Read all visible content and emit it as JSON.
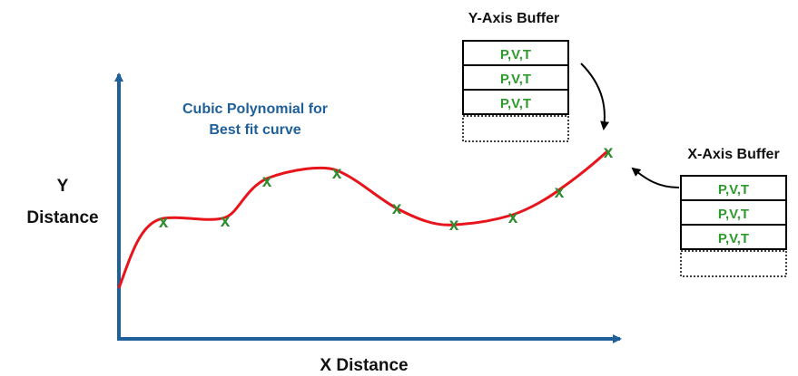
{
  "axes": {
    "y_label_line1": "Y",
    "y_label_line2": "Distance",
    "x_label": "X Distance"
  },
  "curve_caption": {
    "line1": "Cubic Polynomial for",
    "line2": "Best fit curve"
  },
  "y_buffer": {
    "title": "Y-Axis Buffer",
    "entries": [
      "P,V,T",
      "P,V,T",
      "P,V,T"
    ]
  },
  "x_buffer": {
    "title": "X-Axis Buffer",
    "entries": [
      "P,V,T",
      "P,V,T",
      "P,V,T"
    ]
  },
  "marker_glyph": "x",
  "colors": {
    "axis": "#1f5f9a",
    "curve": "#e8141b",
    "marker": "#2e8b2e",
    "caption": "#1f5f9a",
    "entry_text": "#2e9a2e",
    "label": "#111111"
  }
}
